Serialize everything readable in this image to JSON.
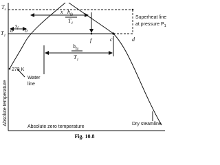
{
  "diagram": {
    "ts": {
      "main": "T",
      "sub": "s"
    },
    "t1": {
      "main": "T",
      "sub": "1"
    },
    "a": "a",
    "b": "b",
    "sf": {
      "main": "s",
      "sub": "f"
    },
    "x_hfg": {
      "prefix": "x",
      "num": {
        "main": "h",
        "sub": "fg"
      },
      "den": {
        "main": "T",
        "sub": "1"
      }
    },
    "f": "f",
    "c": "c",
    "d": "d",
    "hfg": {
      "num": {
        "main": "h",
        "sub": "fg"
      },
      "den": {
        "main": "T",
        "sub": "1"
      }
    },
    "superheat": {
      "line1": "Superheat line",
      "line2": {
        "main": "at pressure P",
        "sub": "1"
      }
    },
    "k273": "273 K",
    "water_line": {
      "line1": "Water",
      "line2": "line"
    },
    "dry_steamline": "Dry steamline",
    "y_axis": "Absolute temperature",
    "x_axis": "Absolute zero temperature",
    "caption": "Fig. 10.8"
  }
}
